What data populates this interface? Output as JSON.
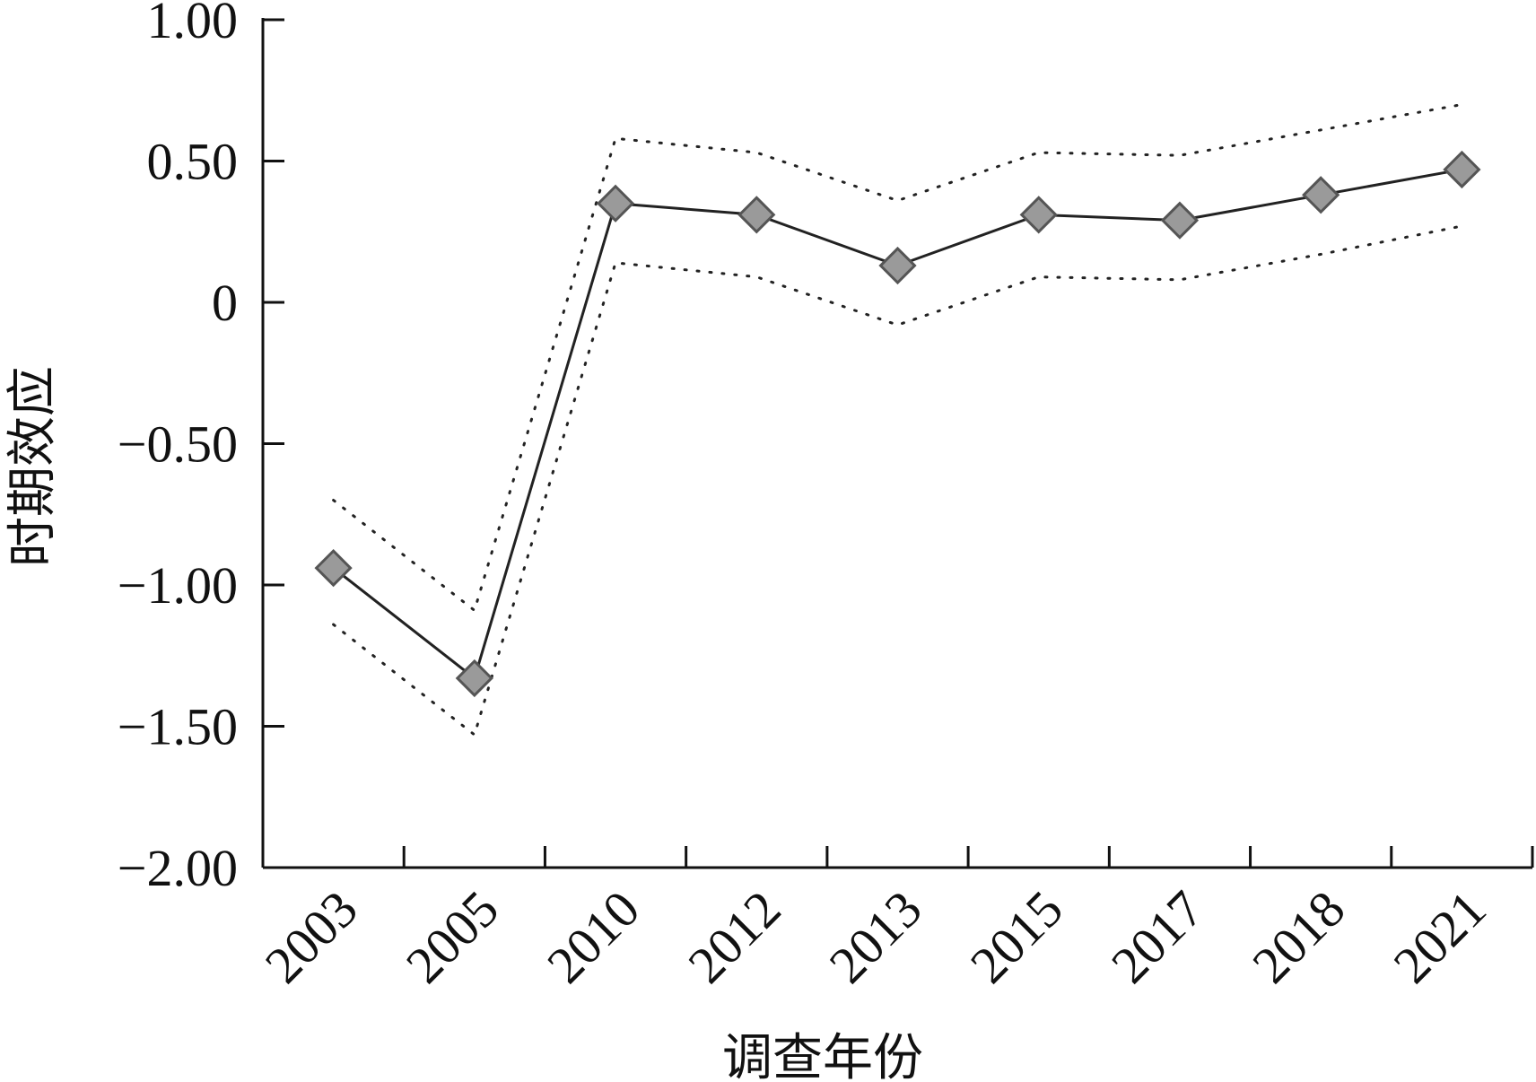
{
  "chart_data": {
    "type": "line",
    "title": "",
    "xlabel": "调查年份",
    "ylabel": "时期效应",
    "categories": [
      "2003",
      "2005",
      "2010",
      "2012",
      "2013",
      "2015",
      "2017",
      "2018",
      "2021"
    ],
    "series": [
      {
        "values": [
          -0.94,
          -1.33,
          0.35,
          0.31,
          0.13,
          0.31,
          0.29,
          0.38,
          0.47
        ],
        "style": "solid",
        "marker": "diamond",
        "color": "#222222",
        "marker_fill": "#9a9a9a"
      },
      {
        "values": [
          -0.7,
          -1.09,
          0.58,
          0.53,
          0.36,
          0.53,
          0.52,
          0.61,
          0.7
        ],
        "style": "dotted",
        "color": "#222222"
      },
      {
        "values": [
          -1.14,
          -1.53,
          0.14,
          0.09,
          -0.08,
          0.09,
          0.08,
          0.17,
          0.27
        ],
        "style": "dotted",
        "color": "#222222"
      }
    ],
    "ylim": [
      -2.0,
      1.0
    ],
    "yticks": [
      1.0,
      0.5,
      0,
      -0.5,
      -1.0,
      -1.5,
      -2.0
    ],
    "ytick_labels": [
      "1.00",
      "0.50",
      "0",
      "−0.50",
      "−1.00",
      "−1.50",
      "−2.00"
    ],
    "grid": false,
    "legend": "none"
  }
}
